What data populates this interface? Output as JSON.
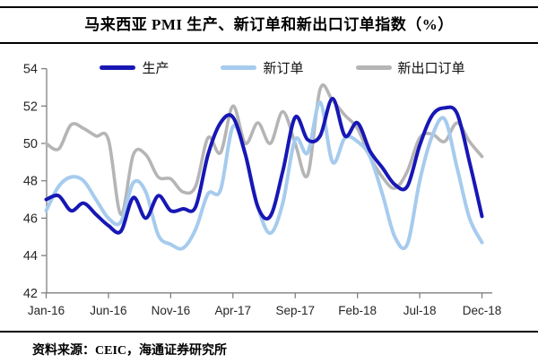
{
  "title": "马来西亚 PMI 生产、新订单和新出口订单指数（%）",
  "source": "资料来源：CEIC，海通证券研究所",
  "colors": {
    "production": "#1717b5",
    "new_orders": "#a6cbee",
    "export_orders": "#b5b5b5",
    "axis": "#7f7f7f",
    "tick_label": "#262626",
    "rule": "#000000"
  },
  "chart_data": {
    "type": "line",
    "title": "马来西亚 PMI 生产、新订单和新出口订单指数（%）",
    "xlabel": "",
    "ylabel": "",
    "ylim": [
      42,
      54
    ],
    "y_ticks": [
      42,
      44,
      46,
      48,
      50,
      52,
      54
    ],
    "grid": false,
    "legend_position": "top",
    "x": [
      "Jan-16",
      "Feb-16",
      "Mar-16",
      "Apr-16",
      "May-16",
      "Jun-16",
      "Jul-16",
      "Aug-16",
      "Sep-16",
      "Oct-16",
      "Nov-16",
      "Dec-16",
      "Jan-17",
      "Feb-17",
      "Mar-17",
      "Apr-17",
      "May-17",
      "Jun-17",
      "Jul-17",
      "Aug-17",
      "Sep-17",
      "Oct-17",
      "Nov-17",
      "Dec-17",
      "Jan-18",
      "Feb-18",
      "Mar-18",
      "Apr-18",
      "May-18",
      "Jun-18",
      "Jul-18",
      "Aug-18",
      "Sep-18",
      "Oct-18",
      "Nov-18",
      "Dec-18"
    ],
    "x_tick_labels": [
      "Jan-16",
      "Jun-16",
      "Nov-16",
      "Apr-17",
      "Sep-17",
      "Feb-18",
      "Jul-18",
      "Dec-18"
    ],
    "x_tick_indices": [
      0,
      5,
      10,
      15,
      20,
      25,
      30,
      35
    ],
    "series": [
      {
        "name": "生产",
        "color": "#1717b5",
        "values": [
          47.0,
          47.2,
          46.4,
          46.8,
          46.2,
          45.6,
          45.3,
          47.1,
          46.0,
          47.2,
          46.4,
          46.5,
          46.6,
          49.4,
          51.1,
          51.4,
          49.4,
          46.6,
          46.1,
          48.5,
          51.4,
          50.2,
          50.4,
          52.4,
          50.4,
          51.1,
          49.6,
          48.7,
          47.8,
          47.7,
          49.9,
          51.5,
          51.9,
          51.6,
          49.0,
          46.1
        ]
      },
      {
        "name": "新订单",
        "color": "#a6cbee",
        "values": [
          46.4,
          47.7,
          48.2,
          48.0,
          47.0,
          46.0,
          45.8,
          47.9,
          47.4,
          45.1,
          44.6,
          44.4,
          45.4,
          47.3,
          47.5,
          50.9,
          49.4,
          46.6,
          45.2,
          46.8,
          50.2,
          49.5,
          52.2,
          49.0,
          50.3,
          50.1,
          49.3,
          47.3,
          45.0,
          44.6,
          48.0,
          50.4,
          51.3,
          48.7,
          46.0,
          44.7
        ]
      },
      {
        "name": "新出口订单",
        "color": "#b5b5b5",
        "values": [
          50.0,
          49.7,
          51.0,
          50.8,
          50.4,
          50.2,
          46.2,
          49.4,
          49.4,
          48.2,
          48.1,
          47.4,
          47.7,
          50.3,
          49.5,
          52.0,
          50.0,
          51.1,
          50.0,
          51.7,
          50.0,
          48.3,
          52.9,
          52.3,
          51.5,
          50.8,
          49.3,
          48.2,
          47.6,
          48.5,
          50.3,
          50.5,
          50.1,
          51.1,
          50.1,
          49.3
        ]
      }
    ]
  }
}
